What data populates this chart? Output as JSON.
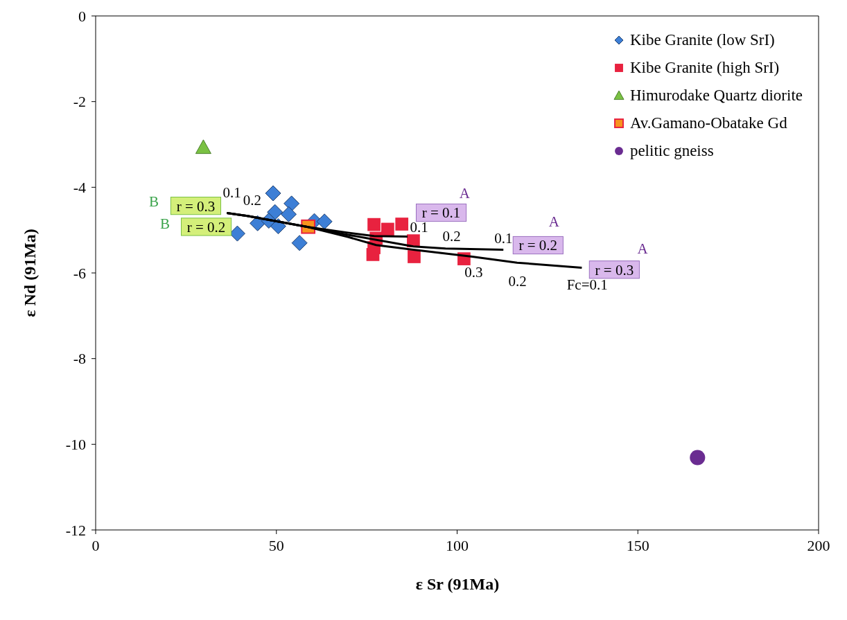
{
  "chart_data": {
    "type": "scatter",
    "xlabel": "ε Sr (91Ma)",
    "ylabel": "ε Nd (91Ma)",
    "xlim": [
      0,
      200
    ],
    "xticks": [
      0,
      50,
      100,
      150,
      200
    ],
    "ylim": [
      -12,
      0
    ],
    "yticks": [
      -12,
      -10,
      -8,
      -6,
      -4,
      -2,
      0
    ],
    "grid": false,
    "legend": "top right",
    "series": [
      {
        "name": "Kibe Granite (low SrI)",
        "color": "#3d7fd6",
        "marker": "diamond",
        "x": [
          39.2,
          49.1,
          54.2,
          49.6,
          53.4,
          44.8,
          47.9,
          50.5,
          56.4,
          60.5,
          63.3
        ],
        "values": [
          -5.08,
          -4.14,
          -4.38,
          -4.58,
          -4.63,
          -4.84,
          -4.78,
          -4.91,
          -5.3,
          -4.79,
          -4.8
        ]
      },
      {
        "name": "Kibe Granite (high SrI)",
        "color": "#e8223f",
        "marker": "square",
        "x": [
          77,
          76.7,
          77.6,
          80.8,
          84.7,
          87.9,
          88.1,
          101.9,
          77
        ],
        "values": [
          -4.87,
          -5.57,
          -5.19,
          -4.98,
          -4.86,
          -5.25,
          -5.62,
          -5.67,
          -5.41
        ]
      },
      {
        "name": "Himurodake Quartz diorite",
        "color": "#7ac143",
        "marker": "triangle",
        "x": [
          29.8
        ],
        "values": [
          -3.07
        ]
      },
      {
        "name": "Av.Gamano-Obatake Gd",
        "color": "#f7941d",
        "marker": "square",
        "x": [
          58.8
        ],
        "values": [
          -4.92
        ]
      },
      {
        "name": "pelitic gneiss",
        "color": "#6a2c91",
        "marker": "circle",
        "x": [
          166.5
        ],
        "values": [
          -10.31
        ]
      },
      {
        "type": "line",
        "color": "#000000",
        "marker": "none",
        "x": [
          36.3,
          42,
          58.8,
          69.8,
          77,
          86.3
        ],
        "values": [
          -4.6,
          -4.67,
          -4.93,
          -5.06,
          -5.14,
          -5.15
        ]
      },
      {
        "type": "line",
        "color": "#000000",
        "marker": "none",
        "x": [
          36.3,
          42,
          58.8,
          69.8,
          87.9,
          96.8,
          112.8
        ],
        "values": [
          -4.6,
          -4.67,
          -4.93,
          -5.11,
          -5.38,
          -5.43,
          -5.46
        ]
      },
      {
        "type": "line",
        "color": "#000000",
        "marker": "none",
        "x": [
          36.3,
          42,
          58.8,
          69.8,
          77.6,
          87.9,
          104.2,
          116.6,
          134.5
        ],
        "values": [
          -4.6,
          -4.67,
          -4.93,
          -5.16,
          -5.35,
          -5.46,
          -5.62,
          -5.76,
          -5.88
        ]
      }
    ],
    "annotations": [
      "B",
      "B",
      "r = 0.3",
      "r = 0.2",
      "0.1",
      "0.2",
      "A",
      "r = 0.1",
      "0.1",
      "0.2",
      "0.1",
      "A",
      "r = 0.2",
      "A",
      "r = 0.3",
      "0.3",
      "0.2",
      "Fc=0.1"
    ]
  }
}
